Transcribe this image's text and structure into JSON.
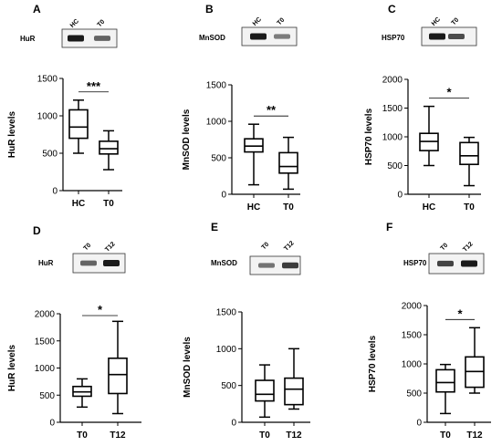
{
  "colors": {
    "box_stroke": "#000000",
    "band": "#1a1a1a"
  },
  "chart_data": [
    {
      "panel": "A",
      "type": "box",
      "categories": [
        "HC",
        "T0"
      ],
      "ylabel": "HuR levels",
      "ylim": [
        0,
        1500
      ],
      "yticks": [
        "0",
        "500",
        "1000",
        "1500"
      ],
      "series": [
        {
          "category": "HC",
          "min": 500,
          "q1": 700,
          "median": 850,
          "q3": 1080,
          "max": 1210
        },
        {
          "category": "T0",
          "min": 280,
          "q1": 490,
          "median": 560,
          "q3": 660,
          "max": 800
        }
      ],
      "significance": "***",
      "blot": {
        "label": "HuR",
        "lanes": [
          "HC",
          "T0"
        ],
        "intensity": [
          1.0,
          0.55
        ]
      }
    },
    {
      "panel": "B",
      "type": "box",
      "categories": [
        "HC",
        "T0"
      ],
      "ylabel": "MnSOD levels",
      "ylim": [
        0,
        1500
      ],
      "yticks": [
        "0",
        "500",
        "1000",
        "1500"
      ],
      "series": [
        {
          "category": "HC",
          "min": 130,
          "q1": 580,
          "median": 660,
          "q3": 760,
          "max": 960
        },
        {
          "category": "T0",
          "min": 70,
          "q1": 290,
          "median": 380,
          "q3": 570,
          "max": 780
        }
      ],
      "significance": "**",
      "blot": {
        "label": "MnSOD",
        "lanes": [
          "HC",
          "T0"
        ],
        "intensity": [
          1.0,
          0.4
        ]
      }
    },
    {
      "panel": "C",
      "type": "box",
      "categories": [
        "HC",
        "T0"
      ],
      "ylabel": "HSP70 levels",
      "ylim": [
        0,
        2000
      ],
      "yticks": [
        "0",
        "500",
        "1000",
        "1500",
        "2000"
      ],
      "series": [
        {
          "category": "HC",
          "min": 500,
          "q1": 760,
          "median": 920,
          "q3": 1060,
          "max": 1530
        },
        {
          "category": "T0",
          "min": 150,
          "q1": 520,
          "median": 670,
          "q3": 900,
          "max": 990
        }
      ],
      "significance": "*",
      "blot": {
        "label": "HSP70",
        "lanes": [
          "HC",
          "T0"
        ],
        "intensity": [
          1.0,
          0.7
        ]
      }
    },
    {
      "panel": "D",
      "type": "box",
      "categories": [
        "T0",
        "T12"
      ],
      "ylabel": "HuR levels",
      "ylim": [
        0,
        2000
      ],
      "yticks": [
        "0",
        "500",
        "1000",
        "1500",
        "2000"
      ],
      "series": [
        {
          "category": "T0",
          "min": 280,
          "q1": 480,
          "median": 560,
          "q3": 660,
          "max": 800
        },
        {
          "category": "T12",
          "min": 160,
          "q1": 530,
          "median": 880,
          "q3": 1180,
          "max": 1860
        }
      ],
      "significance": "*",
      "blot": {
        "label": "HuR",
        "lanes": [
          "T0",
          "T12"
        ],
        "intensity": [
          0.55,
          1.0
        ]
      }
    },
    {
      "panel": "E",
      "type": "box",
      "categories": [
        "T0",
        "T12"
      ],
      "ylabel": "MnSOD levels",
      "ylim": [
        0,
        1500
      ],
      "yticks": [
        "0",
        "500",
        "1000",
        "1500"
      ],
      "series": [
        {
          "category": "T0",
          "min": 70,
          "q1": 290,
          "median": 380,
          "q3": 570,
          "max": 780
        },
        {
          "category": "T12",
          "min": 180,
          "q1": 240,
          "median": 450,
          "q3": 600,
          "max": 1000
        }
      ],
      "significance": "",
      "blot": {
        "label": "MnSOD",
        "lanes": [
          "T0",
          "T12"
        ],
        "intensity": [
          0.45,
          0.8
        ]
      }
    },
    {
      "panel": "F",
      "type": "box",
      "categories": [
        "T0",
        "T12"
      ],
      "ylabel": "HSP70 levels",
      "ylim": [
        0,
        2000
      ],
      "yticks": [
        "0",
        "500",
        "1000",
        "1500",
        "2000"
      ],
      "series": [
        {
          "category": "T0",
          "min": 150,
          "q1": 520,
          "median": 680,
          "q3": 900,
          "max": 990
        },
        {
          "category": "T12",
          "min": 500,
          "q1": 600,
          "median": 870,
          "q3": 1120,
          "max": 1620
        }
      ],
      "significance": "*",
      "blot": {
        "label": "HSP70",
        "lanes": [
          "T0",
          "T12"
        ],
        "intensity": [
          0.75,
          1.0
        ]
      }
    }
  ]
}
